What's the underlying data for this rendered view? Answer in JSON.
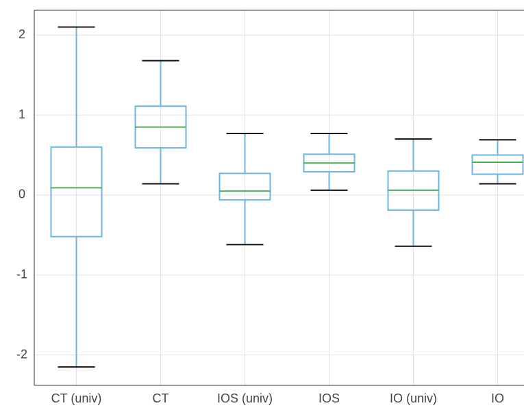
{
  "chart_data": {
    "type": "box",
    "categories": [
      "CT (univ)",
      "CT",
      "IOS (univ)",
      "IOS",
      "IO (univ)",
      "IO"
    ],
    "whisker_low": [
      -2.15,
      0.14,
      -0.62,
      0.06,
      -0.64,
      0.14
    ],
    "q1": [
      -0.52,
      0.59,
      -0.06,
      0.29,
      -0.19,
      0.26
    ],
    "median": [
      0.09,
      0.85,
      0.05,
      0.4,
      0.06,
      0.41
    ],
    "q3": [
      0.6,
      1.11,
      0.27,
      0.51,
      0.3,
      0.5
    ],
    "whisker_high": [
      2.1,
      1.68,
      0.77,
      0.77,
      0.7,
      0.69
    ],
    "box_color": "#6cb6e2",
    "median_color": "#4caf50",
    "cap_color": "#111111",
    "ylim": [
      -2.38,
      2.31
    ],
    "yticks": [
      -2,
      -1,
      0,
      1,
      2
    ],
    "grid": true
  }
}
